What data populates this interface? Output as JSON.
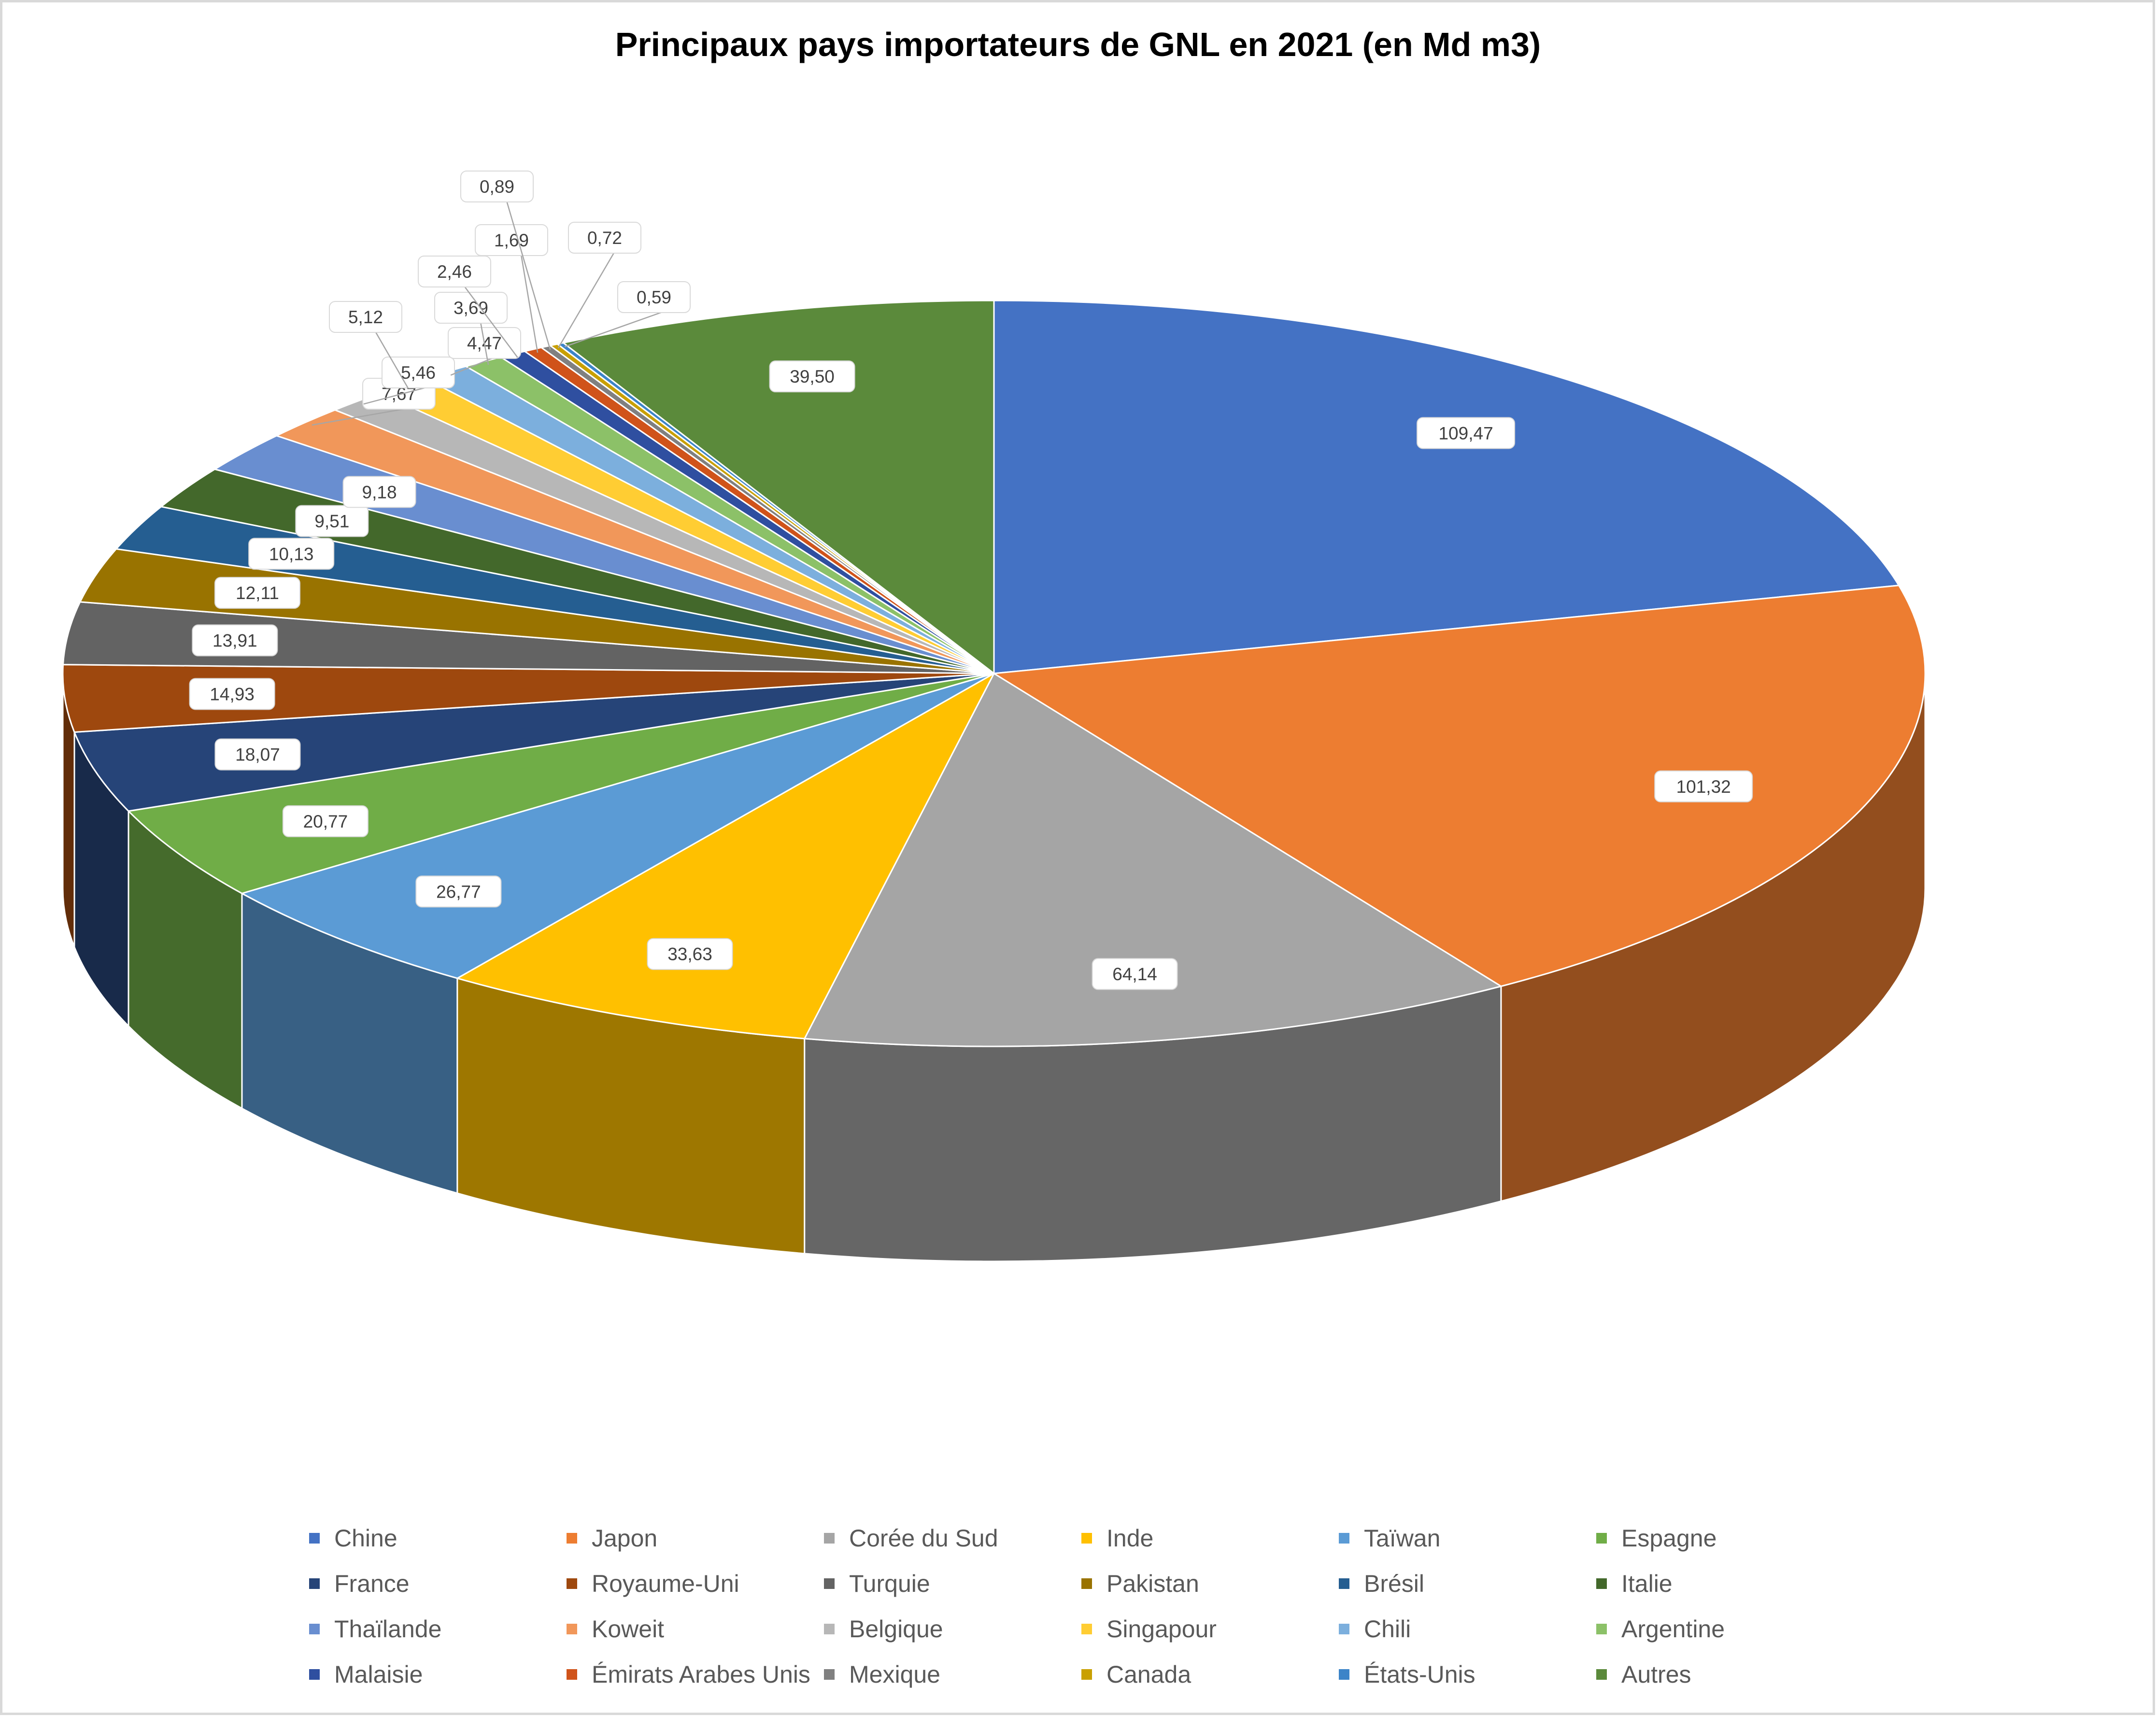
{
  "chart_data": {
    "type": "pie",
    "title": "Principaux pays importateurs de GNL en 2021 (en Md m3)",
    "categories": [
      "Chine",
      "Japon",
      "Corée du Sud",
      "Inde",
      "Taïwan",
      "Espagne",
      "France",
      "Royaume-Uni",
      "Turquie",
      "Pakistan",
      "Brésil",
      "Italie",
      "Thaïlande",
      "Koweit",
      "Belgique",
      "Singapour",
      "Chili",
      "Argentine",
      "Malaisie",
      "Émirats Arabes Unis",
      "Mexique",
      "Canada",
      "États-Unis",
      "Autres"
    ],
    "values": [
      109.47,
      101.32,
      64.14,
      33.63,
      26.77,
      20.77,
      18.07,
      14.93,
      13.91,
      12.11,
      10.13,
      9.51,
      9.18,
      7.67,
      5.46,
      5.12,
      4.47,
      3.69,
      2.46,
      1.69,
      0.89,
      0.72,
      0.59,
      39.5
    ],
    "value_labels": [
      "109,47",
      "101,32",
      "64,14",
      "33,63",
      "26,77",
      "20,77",
      "18,07",
      "14,93",
      "13,91",
      "12,11",
      "10,13",
      "9,51",
      "9,18",
      "7,67",
      "5,46",
      "5,12",
      "4,47",
      "3,69",
      "2,46",
      "1,69",
      "0,89",
      "0,72",
      "0,59",
      "39,50"
    ],
    "colors": [
      "#4472C4",
      "#ED7D31",
      "#A5A5A5",
      "#FFC000",
      "#5B9BD5",
      "#70AD47",
      "#264478",
      "#9E480E",
      "#636363",
      "#997300",
      "#255E91",
      "#43682B",
      "#698ED0",
      "#F1975A",
      "#B7B7B7",
      "#FFCD33",
      "#7CAFDD",
      "#8CC168",
      "#2F4FA0",
      "#D0531A",
      "#808080",
      "#C9A000",
      "#3C84C8",
      "#5B8A3B"
    ],
    "style": "3d-pie",
    "legend_position": "bottom"
  }
}
